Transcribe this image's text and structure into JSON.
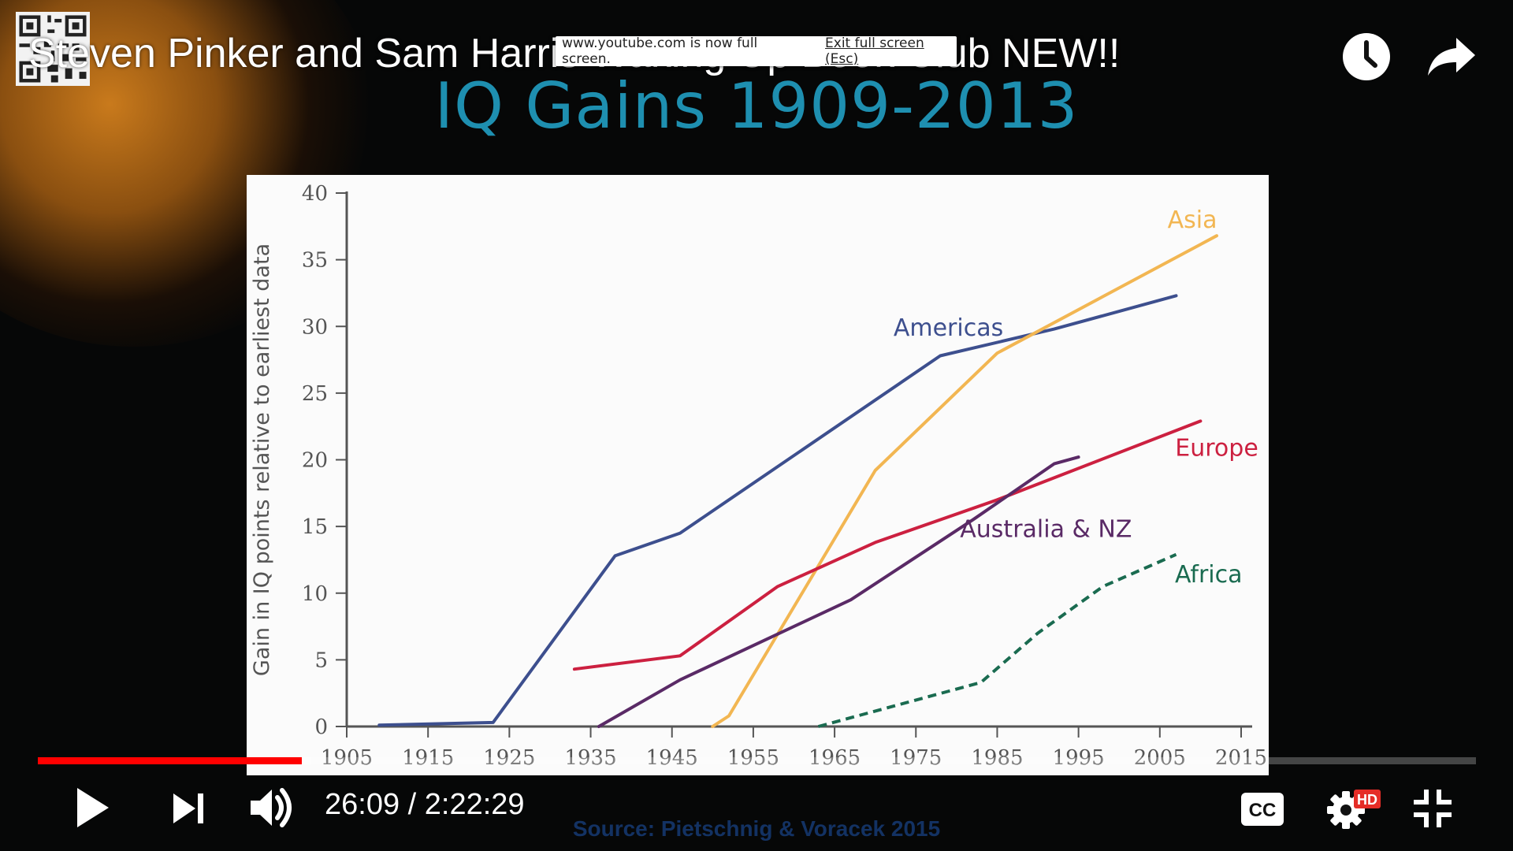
{
  "video_title": "Steven Pinker and Sam Harris Waking Up Book Club NEW!!",
  "fullscreen_notice": {
    "message": "www.youtube.com is now full screen.",
    "exit_label": "Exit full screen (Esc)"
  },
  "slide": {
    "title": "IQ  Gains 1909-2013",
    "source": "Source: Pietschnig & Voracek 2015"
  },
  "chart_data": {
    "type": "line",
    "title": "IQ  Gains 1909-2013",
    "ylabel": "Gain in  IQ points relative to earliest data",
    "xlabel": "",
    "xlim": [
      1905,
      2015
    ],
    "ylim": [
      0,
      40
    ],
    "x_ticks": [
      "1905",
      "1915",
      "1925",
      "1935",
      "1945",
      "1955",
      "1965",
      "1975",
      "1985",
      "1995",
      "2005",
      "2015"
    ],
    "y_ticks": [
      "0",
      "5",
      "10",
      "15",
      "20",
      "25",
      "30",
      "35",
      "40"
    ],
    "grid": false,
    "series": [
      {
        "name": "Americas",
        "color": "#3d4f8e",
        "dashed": false,
        "points": [
          [
            1909,
            0.1
          ],
          [
            1923,
            0.3
          ],
          [
            1938,
            12.8
          ],
          [
            1946,
            14.5
          ],
          [
            1978,
            27.8
          ],
          [
            1992,
            29.8
          ],
          [
            2007,
            32.3
          ]
        ]
      },
      {
        "name": "Asia",
        "color": "#f2b652",
        "dashed": false,
        "points": [
          [
            1950,
            0
          ],
          [
            1952,
            0.8
          ],
          [
            1970,
            19.2
          ],
          [
            1985,
            28
          ],
          [
            2012,
            36.8
          ]
        ]
      },
      {
        "name": "Europe",
        "color": "#cc2040",
        "dashed": false,
        "points": [
          [
            1933,
            4.3
          ],
          [
            1946,
            5.3
          ],
          [
            1958,
            10.5
          ],
          [
            1970,
            13.8
          ],
          [
            1985,
            17
          ],
          [
            2010,
            22.9
          ]
        ]
      },
      {
        "name": "Australia & NZ",
        "color": "#5a2a66",
        "dashed": false,
        "points": [
          [
            1936,
            0
          ],
          [
            1946,
            3.5
          ],
          [
            1967,
            9.5
          ],
          [
            1982,
            15.5
          ],
          [
            1992,
            19.7
          ],
          [
            1995,
            20.2
          ]
        ]
      },
      {
        "name": "Africa",
        "color": "#1a6b50",
        "dashed": true,
        "points": [
          [
            1963,
            0
          ],
          [
            1983,
            3.3
          ],
          [
            1990,
            7
          ],
          [
            1998,
            10.5
          ],
          [
            2007,
            12.9
          ]
        ]
      }
    ],
    "labels": [
      {
        "text": "Americas",
        "x": 1979,
        "y": 29.3,
        "color": "#3d4f8e"
      },
      {
        "text": "Asia",
        "x": 2009,
        "y": 37.4,
        "color": "#f2b652"
      },
      {
        "text": "Europe",
        "x": 2012,
        "y": 20.3,
        "color": "#cc2040"
      },
      {
        "text": "Australia & NZ",
        "x": 1991,
        "y": 14.2,
        "color": "#5a2a66"
      },
      {
        "text": "Africa",
        "x": 2011,
        "y": 10.8,
        "color": "#1a6b50"
      }
    ]
  },
  "player": {
    "current_time": "26:09",
    "duration": "2:22:29",
    "time_display": "26:09 / 2:22:29",
    "progress_fraction": 0.1834,
    "buffered_fraction": 0.19,
    "hd_badge": "HD",
    "cc_label": "CC",
    "colors": {
      "progress": "#ff0000",
      "hd_badge": "#e52d27"
    },
    "icons": [
      "play-icon",
      "next-icon",
      "volume-icon",
      "captions-icon",
      "settings-icon",
      "exit-fullscreen-icon",
      "clock-icon",
      "share-arrow-icon"
    ]
  }
}
